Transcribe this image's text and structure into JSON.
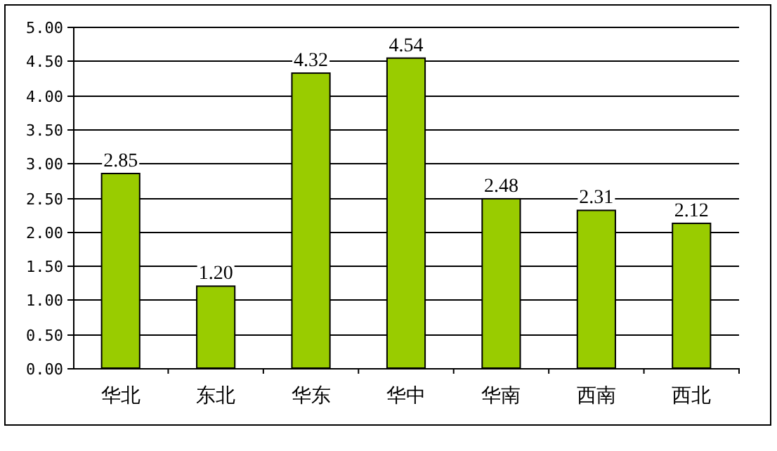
{
  "chart_data": {
    "type": "bar",
    "categories": [
      "华北",
      "东北",
      "华东",
      "华中",
      "华南",
      "西南",
      "西北"
    ],
    "values": [
      2.85,
      1.2,
      4.32,
      4.54,
      2.48,
      2.31,
      2.12
    ],
    "value_labels": [
      "2.85",
      "1.20",
      "4.32",
      "4.54",
      "2.48",
      "2.31",
      "2.12"
    ],
    "color": "#99cc00",
    "ylim": [
      0,
      5
    ],
    "yticks": [
      {
        "value": 0,
        "label": "0.00"
      },
      {
        "value": 0.5,
        "label": "0.50"
      },
      {
        "value": 1,
        "label": "1.00"
      },
      {
        "value": 1.5,
        "label": "1.50"
      },
      {
        "value": 2,
        "label": "2.00"
      },
      {
        "value": 2.5,
        "label": "2.50"
      },
      {
        "value": 3,
        "label": "3.00"
      },
      {
        "value": 3.5,
        "label": "3.50"
      },
      {
        "value": 4,
        "label": "4.00"
      },
      {
        "value": 4.5,
        "label": "4.50"
      },
      {
        "value": 5,
        "label": "5.00"
      }
    ],
    "grid": "y"
  }
}
